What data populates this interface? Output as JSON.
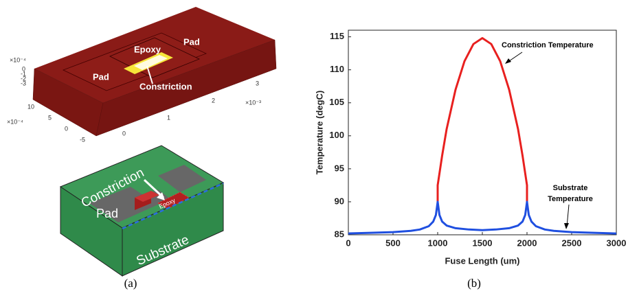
{
  "panel_a": {
    "render": {
      "labels": [
        "Epoxy",
        "Pad",
        "Pad",
        "Constriction"
      ],
      "z_exponent": "×10⁻⁴",
      "z_ticks": [
        "0",
        "-1",
        "-2",
        "-3"
      ],
      "y_exponent": "×10⁻⁴",
      "y_ticks": [
        "10",
        "5",
        "0",
        "-5"
      ],
      "x_exponent": "×10⁻³",
      "x_ticks": [
        "0",
        "1",
        "2",
        "3"
      ]
    },
    "diagram": {
      "labels": [
        "Constriction",
        "Pad",
        "Epoxy",
        "Substrate"
      ]
    }
  },
  "captions": [
    "(a)",
    "(b)"
  ],
  "chart_data": {
    "type": "line",
    "xlabel": "Fuse Length (um)",
    "ylabel": "Temperature (degC)",
    "xlim": [
      0,
      3000
    ],
    "xticks": [
      0,
      500,
      1000,
      1500,
      2000,
      2500,
      3000
    ],
    "ylim": [
      85,
      116
    ],
    "yticks": [
      85,
      90,
      95,
      100,
      105,
      110,
      115
    ],
    "series": [
      {
        "name": "Constriction Temperature",
        "color": "#e8201f",
        "x": [
          1000,
          1000,
          1050,
          1100,
          1200,
          1300,
          1400,
          1500,
          1600,
          1700,
          1800,
          1900,
          1950,
          2000,
          2000
        ],
        "values": [
          90,
          92.5,
          97,
          101,
          107,
          111.3,
          113.9,
          114.8,
          113.9,
          111.3,
          107,
          101,
          97,
          92.5,
          90
        ]
      },
      {
        "name": "Substrate Temperature",
        "color": "#1f4fe0",
        "x": [
          0,
          250,
          500,
          700,
          800,
          900,
          950,
          980,
          1000,
          1020,
          1050,
          1100,
          1200,
          1350,
          1500,
          1650,
          1800,
          1900,
          1950,
          1980,
          2000,
          2020,
          2050,
          2100,
          2200,
          2300,
          2500,
          2750,
          3000
        ],
        "values": [
          85.2,
          85.3,
          85.4,
          85.6,
          85.8,
          86.3,
          87,
          88,
          90,
          88,
          87,
          86.4,
          86,
          85.8,
          85.7,
          85.8,
          86,
          86.4,
          87,
          88,
          90,
          88,
          87,
          86.3,
          85.8,
          85.6,
          85.4,
          85.3,
          85.2
        ]
      }
    ],
    "annotations": [
      {
        "text": "Constriction Temperature"
      },
      {
        "lines": [
          "Substrate",
          "Temperature"
        ]
      }
    ]
  }
}
